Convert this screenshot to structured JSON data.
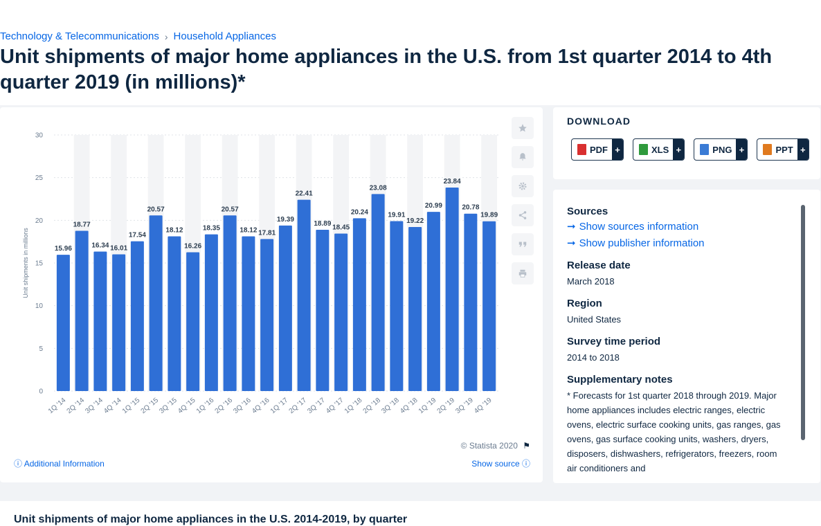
{
  "breadcrumb": {
    "item1": "Technology & Telecommunications",
    "separator": "›",
    "item2": "Household Appliances"
  },
  "page_title": "Unit shipments of major home appliances in the U.S. from 1st quarter 2014 to 4th quarter 2019 (in millions)*",
  "chart_card": {
    "copyright": "© Statista 2020",
    "additional_info": "Additional Information",
    "show_source": "Show source",
    "tool_icons": [
      "star-icon",
      "bell-icon",
      "gear-icon",
      "share-icon",
      "quote-icon",
      "print-icon"
    ]
  },
  "download": {
    "title": "DOWNLOAD",
    "buttons": [
      {
        "label": "PDF",
        "plus": "+",
        "color": "#d93030"
      },
      {
        "label": "XLS",
        "plus": "+",
        "color": "#2f9a3c"
      },
      {
        "label": "PNG",
        "plus": "+",
        "color": "#3a7bd5"
      },
      {
        "label": "PPT",
        "plus": "+",
        "color": "#e07a1f"
      }
    ]
  },
  "info": {
    "sources_title": "Sources",
    "show_sources": "Show sources information",
    "show_publisher": "Show publisher information",
    "release_title": "Release date",
    "release_value": "March 2018",
    "region_title": "Region",
    "region_value": "United States",
    "survey_title": "Survey time period",
    "survey_value": "2014 to 2018",
    "notes_title": "Supplementary notes",
    "notes_text": "* Forecasts for 1st quarter 2018 through 2019. Major home appliances includes electric ranges, electric ovens, electric surface cooking units, gas ranges, gas ovens, gas surface cooking units, washers, dryers, disposers, dishwashers, refrigerators, freezers, room air conditioners and"
  },
  "bottom_heading": "Unit shipments of major home appliances in the U.S. 2014-2019, by quarter",
  "colors": {
    "bar": "#2f6fd6",
    "accent_link": "#0666e5",
    "text": "#0f2741"
  },
  "chart_data": {
    "type": "bar",
    "title": "",
    "xlabel": "",
    "ylabel": "Unit shipments in millions",
    "ylim": [
      0,
      30
    ],
    "yticks": [
      0,
      5,
      10,
      15,
      20,
      25,
      30
    ],
    "grid": true,
    "categories": [
      "1Q '14",
      "2Q '14",
      "3Q '14",
      "4Q '14",
      "1Q '15",
      "2Q '15",
      "3Q '15",
      "4Q '15",
      "1Q '16",
      "2Q '16",
      "3Q '16",
      "4Q '16",
      "1Q '17",
      "2Q '17",
      "3Q '17",
      "4Q '17",
      "1Q '18",
      "2Q '18",
      "3Q '18",
      "4Q '18",
      "1Q '19",
      "2Q '19",
      "3Q '19",
      "4Q '19"
    ],
    "values": [
      15.96,
      18.77,
      16.34,
      16.01,
      17.54,
      20.57,
      18.12,
      16.26,
      18.35,
      20.57,
      18.12,
      17.81,
      19.39,
      22.41,
      18.89,
      18.45,
      20.24,
      23.08,
      19.91,
      19.22,
      20.99,
      23.84,
      20.78,
      19.89
    ],
    "labels": [
      "15.96",
      "18.77",
      "16.34",
      "16.01",
      "17.54",
      "20.57",
      "18.12",
      "16.26",
      "18.35",
      "20.57",
      "18.12",
      "17.81",
      "19.39",
      "22.41",
      "18.89",
      "18.45",
      "20.24",
      "23.08",
      "19.91",
      "19.22",
      "20.99",
      "23.84",
      "20.78",
      "19.89"
    ]
  }
}
